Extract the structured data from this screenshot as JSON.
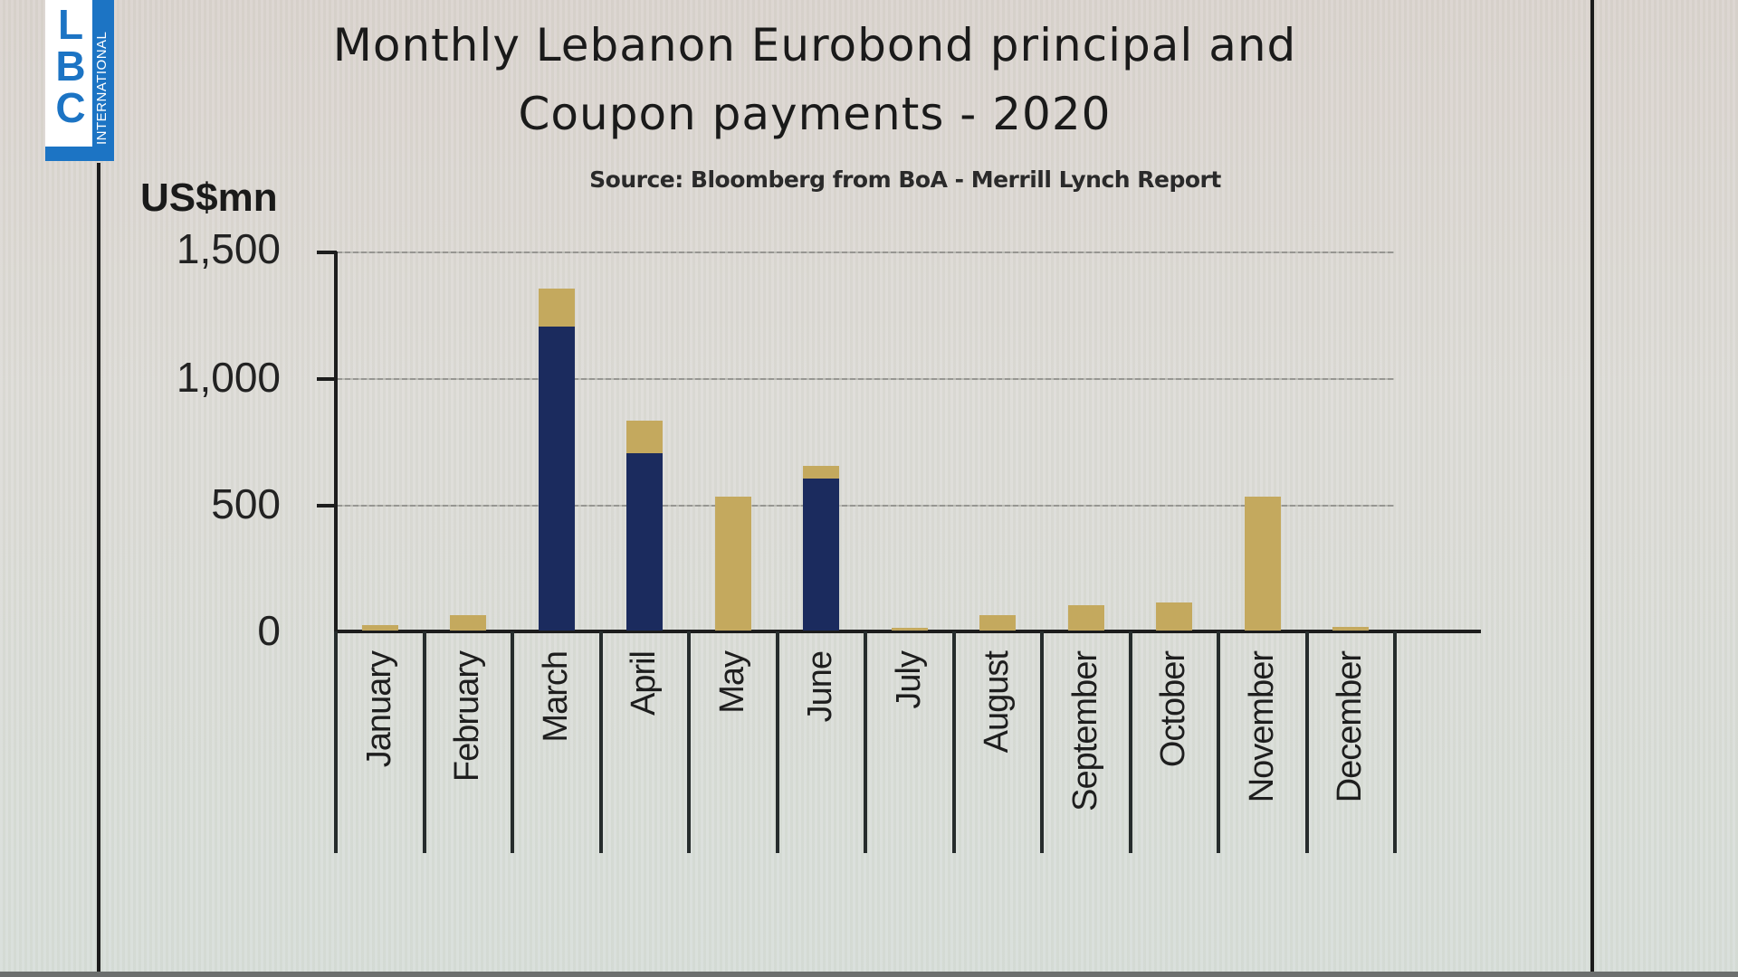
{
  "broadcaster_logo": {
    "letters": [
      "L",
      "B",
      "C"
    ],
    "tagline": "INTERNATIONAL",
    "color": "#1c74c4"
  },
  "header": {
    "title_line1": "Monthly Lebanon Eurobond principal and",
    "title_line2": "Coupon  payments - 2020",
    "source": "Source: Bloomberg  from BoA - Merrill Lynch Report",
    "unit": "US$mn"
  },
  "colors": {
    "principal": "#1b2b5e",
    "coupon": "#c4a95e"
  },
  "yaxis": {
    "ticks": [
      "1,500",
      "1,000",
      "500",
      "0"
    ]
  },
  "chart_data": {
    "type": "bar",
    "stacked": true,
    "title": "Monthly Lebanon Eurobond principal and Coupon payments - 2020",
    "subtitle": "Source: Bloomberg  from BoA - Merrill Lynch Report",
    "xlabel": "",
    "ylabel": "US$mn",
    "ylim": [
      0,
      1500
    ],
    "yticks": [
      0,
      500,
      1000,
      1500
    ],
    "grid": true,
    "legend": null,
    "categories": [
      "January",
      "February",
      "March",
      "April",
      "May",
      "June",
      "July",
      "August",
      "September",
      "October",
      "November",
      "December"
    ],
    "series": [
      {
        "name": "Principal",
        "color": "#1b2b5e",
        "values": [
          0,
          0,
          1200,
          700,
          0,
          600,
          0,
          0,
          0,
          0,
          0,
          0
        ]
      },
      {
        "name": "Coupon",
        "color": "#c4a95e",
        "values": [
          20,
          60,
          150,
          130,
          530,
          50,
          10,
          60,
          100,
          110,
          530,
          15
        ]
      }
    ]
  }
}
